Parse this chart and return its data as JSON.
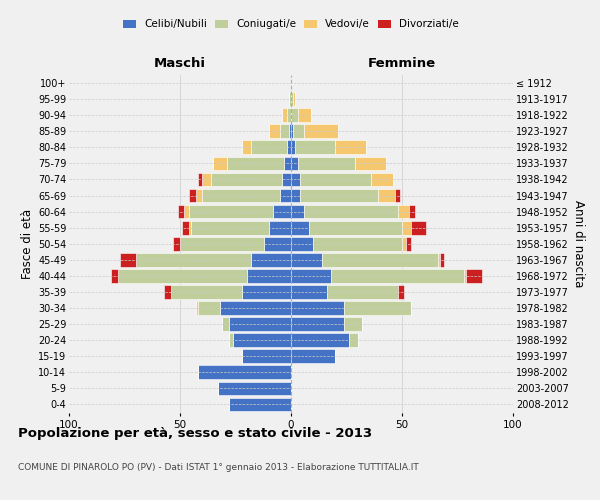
{
  "age_groups": [
    "0-4",
    "5-9",
    "10-14",
    "15-19",
    "20-24",
    "25-29",
    "30-34",
    "35-39",
    "40-44",
    "45-49",
    "50-54",
    "55-59",
    "60-64",
    "65-69",
    "70-74",
    "75-79",
    "80-84",
    "85-89",
    "90-94",
    "95-99",
    "100+"
  ],
  "birth_years": [
    "2008-2012",
    "2003-2007",
    "1998-2002",
    "1993-1997",
    "1988-1992",
    "1983-1987",
    "1978-1982",
    "1973-1977",
    "1968-1972",
    "1963-1967",
    "1958-1962",
    "1953-1957",
    "1948-1952",
    "1943-1947",
    "1938-1942",
    "1933-1937",
    "1928-1932",
    "1923-1927",
    "1918-1922",
    "1913-1917",
    "≤ 1912"
  ],
  "colors": {
    "celibe": "#4472C4",
    "coniugato": "#BFCE9A",
    "vedovo": "#F5C76E",
    "divorziato": "#CC2020"
  },
  "males": {
    "celibe": [
      28,
      33,
      42,
      22,
      26,
      28,
      32,
      22,
      20,
      18,
      12,
      10,
      8,
      5,
      4,
      3,
      2,
      1,
      0,
      0,
      0
    ],
    "coniugato": [
      0,
      0,
      0,
      0,
      2,
      3,
      10,
      32,
      58,
      52,
      38,
      35,
      38,
      35,
      32,
      26,
      16,
      4,
      2,
      1,
      0
    ],
    "vedovo": [
      0,
      0,
      0,
      0,
      0,
      0,
      1,
      0,
      0,
      0,
      0,
      1,
      2,
      3,
      4,
      6,
      4,
      5,
      2,
      0,
      0
    ],
    "divorziato": [
      0,
      0,
      0,
      0,
      0,
      0,
      0,
      3,
      3,
      7,
      3,
      3,
      3,
      3,
      2,
      0,
      0,
      0,
      0,
      0,
      0
    ]
  },
  "females": {
    "nubile": [
      0,
      0,
      0,
      20,
      26,
      24,
      24,
      16,
      18,
      14,
      10,
      8,
      6,
      4,
      4,
      3,
      2,
      1,
      0,
      0,
      0
    ],
    "coniugata": [
      0,
      0,
      0,
      0,
      4,
      8,
      30,
      32,
      60,
      52,
      40,
      42,
      42,
      35,
      32,
      26,
      18,
      5,
      3,
      1,
      0
    ],
    "vedova": [
      0,
      0,
      0,
      0,
      0,
      0,
      0,
      0,
      1,
      1,
      2,
      4,
      5,
      8,
      10,
      14,
      14,
      15,
      6,
      1,
      0
    ],
    "divorziata": [
      0,
      0,
      0,
      0,
      0,
      0,
      0,
      3,
      7,
      2,
      2,
      7,
      3,
      2,
      0,
      0,
      0,
      0,
      0,
      0,
      0
    ]
  },
  "xlim": 100,
  "title": "Popolazione per età, sesso e stato civile - 2013",
  "subtitle": "COMUNE DI PINAROLO PO (PV) - Dati ISTAT 1° gennaio 2013 - Elaborazione TUTTITALIA.IT",
  "ylabel_left": "Fasce di età",
  "ylabel_right": "Anni di nascita",
  "header_left": "Maschi",
  "header_right": "Femmine",
  "background_color": "#f0f0f0",
  "bar_edge_color": "white"
}
